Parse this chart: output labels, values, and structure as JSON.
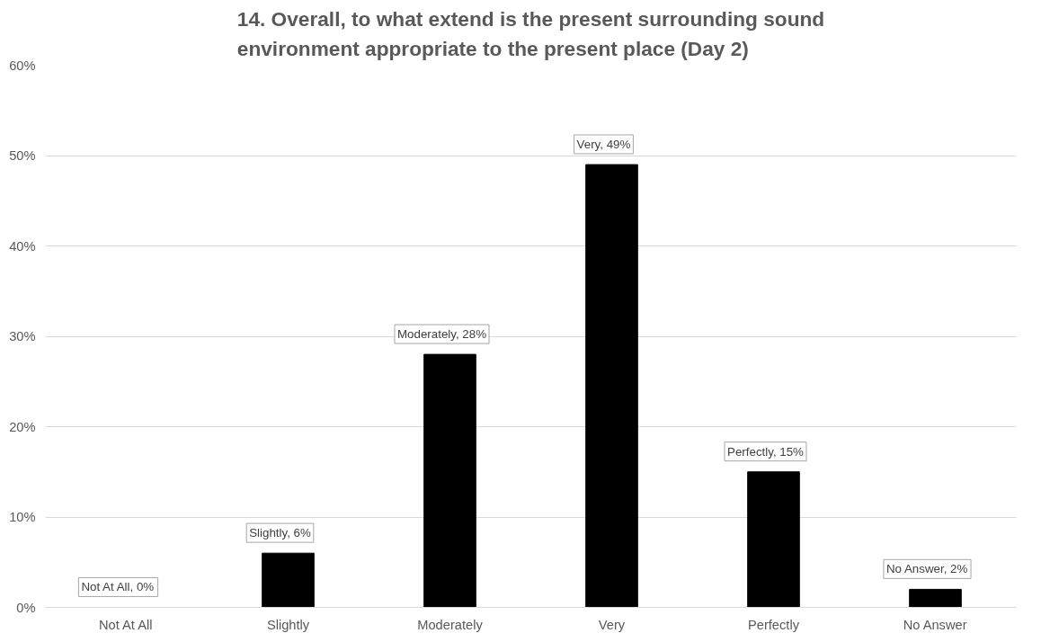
{
  "chart_data": {
    "type": "bar",
    "title": "14. Overall, to what extend is the present surrounding sound environment appropriate to the present place (Day 2)",
    "categories": [
      "Not At All",
      "Slightly",
      "Moderately",
      "Very",
      "Perfectly",
      "No Answer"
    ],
    "values": [
      0,
      6,
      28,
      49,
      15,
      2
    ],
    "value_labels": [
      "Not At All, 0%",
      "Slightly, 6%",
      "Moderately, 28%",
      "Very, 49%",
      "Perfectly, 15%",
      "No Answer, 2%"
    ],
    "color": "#000000",
    "ylim": [
      0,
      60
    ],
    "yticks": [
      {
        "value": 0,
        "label": "0%"
      },
      {
        "value": 10,
        "label": "10%"
      },
      {
        "value": 20,
        "label": "20%"
      },
      {
        "value": 30,
        "label": "30%"
      },
      {
        "value": 40,
        "label": "40%"
      },
      {
        "value": 50,
        "label": "50%"
      },
      {
        "value": 60,
        "label": "60%"
      }
    ],
    "grid": "y"
  }
}
